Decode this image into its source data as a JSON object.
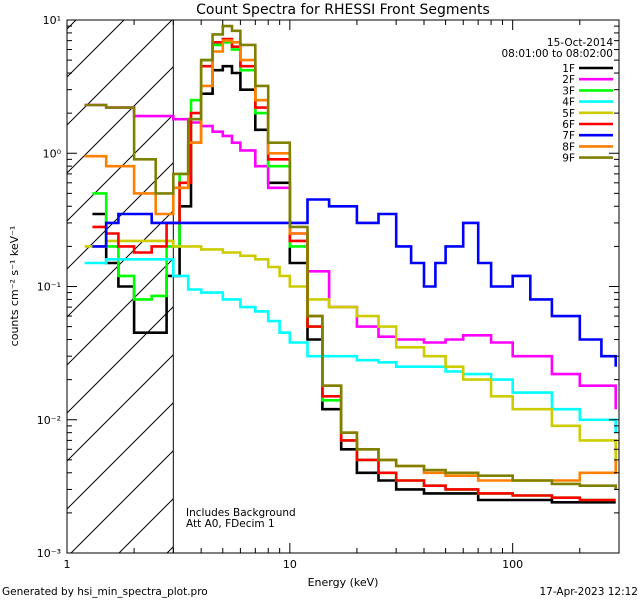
{
  "chart_data": {
    "type": "line",
    "title": "Count Spectra for RHESSI Front Segments",
    "xlabel": "Energy (keV)",
    "ylabel": "counts cm⁻² s⁻¹ keV⁻¹",
    "xscale": "log",
    "yscale": "log",
    "xlim": [
      1,
      300
    ],
    "ylim": [
      0.001,
      10
    ],
    "x_tick_labels": [
      {
        "value": 1,
        "label": "1"
      },
      {
        "value": 10,
        "label": "10"
      },
      {
        "value": 100,
        "label": "100"
      }
    ],
    "y_tick_labels": [
      {
        "value": 10,
        "label": "10¹"
      },
      {
        "value": 1,
        "label": "10⁰"
      },
      {
        "value": 0.1,
        "label": "10⁻¹"
      },
      {
        "value": 0.01,
        "label": "10⁻²"
      },
      {
        "value": 0.001,
        "label": "10⁻³"
      }
    ],
    "excluded_region_end_keV": 3,
    "legend_header": [
      "15-Oct-2014",
      "08:01:00 to 08:02:00"
    ],
    "annotations": [
      "Includes Background",
      "Att A0, FDecim 1"
    ],
    "series": [
      {
        "name": "1F",
        "color": "#000000",
        "x": [
          1.3,
          1.5,
          1.7,
          2.0,
          2.4,
          2.8,
          3.2,
          3.6,
          4.0,
          4.5,
          5.0,
          5.5,
          6.0,
          7.0,
          8.0,
          10,
          12,
          14,
          17,
          20,
          25,
          30,
          40,
          50,
          70,
          100,
          150,
          200,
          290
        ],
        "y": [
          0.35,
          0.15,
          0.1,
          0.045,
          0.045,
          0.12,
          0.4,
          1.2,
          2.8,
          4.2,
          4.5,
          4.0,
          3.0,
          1.5,
          0.6,
          0.15,
          0.04,
          0.012,
          0.006,
          0.004,
          0.0035,
          0.003,
          0.0028,
          0.0028,
          0.0025,
          0.0025,
          0.0024,
          0.0024,
          0.0024
        ]
      },
      {
        "name": "2F",
        "color": "#ff00ff",
        "x": [
          1.2,
          1.5,
          2.0,
          2.5,
          3.0,
          3.5,
          4.0,
          4.5,
          5.0,
          5.5,
          6.0,
          7.0,
          8.0,
          10,
          12,
          15,
          20,
          25,
          30,
          40,
          50,
          60,
          80,
          100,
          150,
          200,
          290
        ],
        "y": [
          2.3,
          2.2,
          1.9,
          1.9,
          1.8,
          1.7,
          1.6,
          1.45,
          1.35,
          1.2,
          1.05,
          0.8,
          0.55,
          0.25,
          0.13,
          0.07,
          0.05,
          0.042,
          0.04,
          0.038,
          0.04,
          0.043,
          0.038,
          0.03,
          0.022,
          0.018,
          0.012
        ]
      },
      {
        "name": "3F",
        "color": "#00ff00",
        "x": [
          1.3,
          1.5,
          1.7,
          2.0,
          2.4,
          2.8,
          3.2,
          3.6,
          4.0,
          4.5,
          5.0,
          5.5,
          6.0,
          7.0,
          8.0,
          10,
          12,
          14,
          17,
          20,
          25,
          30,
          40,
          50,
          70,
          100,
          150,
          200,
          290
        ],
        "y": [
          0.5,
          0.2,
          0.12,
          0.08,
          0.085,
          0.2,
          0.7,
          2.5,
          5.0,
          6.5,
          6.8,
          6.0,
          4.2,
          2.0,
          0.8,
          0.2,
          0.05,
          0.014,
          0.007,
          0.005,
          0.004,
          0.0035,
          0.0032,
          0.003,
          0.0028,
          0.0027,
          0.0026,
          0.0025,
          0.0025
        ]
      },
      {
        "name": "4F",
        "color": "#00ffff",
        "x": [
          1.2,
          1.5,
          2.0,
          2.5,
          3.0,
          3.5,
          4.0,
          5.0,
          6.0,
          7.0,
          8.0,
          9.0,
          10,
          12,
          15,
          20,
          25,
          30,
          40,
          50,
          60,
          80,
          100,
          150,
          200,
          290
        ],
        "y": [
          0.15,
          0.16,
          0.16,
          0.16,
          0.12,
          0.095,
          0.09,
          0.08,
          0.07,
          0.065,
          0.055,
          0.045,
          0.038,
          0.03,
          0.03,
          0.028,
          0.027,
          0.025,
          0.025,
          0.023,
          0.022,
          0.02,
          0.016,
          0.012,
          0.01,
          0.008
        ]
      },
      {
        "name": "5F",
        "color": "#cccc00",
        "x": [
          1.2,
          1.5,
          2.0,
          2.5,
          3.0,
          3.5,
          4.0,
          5.0,
          6.0,
          7.0,
          8.0,
          9.0,
          10,
          12,
          15,
          20,
          25,
          30,
          40,
          50,
          60,
          80,
          100,
          150,
          200,
          290
        ],
        "y": [
          0.2,
          0.22,
          0.22,
          0.22,
          0.2,
          0.2,
          0.19,
          0.18,
          0.17,
          0.16,
          0.14,
          0.12,
          0.1,
          0.08,
          0.07,
          0.06,
          0.05,
          0.035,
          0.03,
          0.025,
          0.02,
          0.015,
          0.012,
          0.009,
          0.007,
          0.005
        ]
      },
      {
        "name": "6F",
        "color": "#ff0000",
        "x": [
          1.3,
          1.5,
          1.7,
          2.0,
          2.4,
          2.8,
          3.2,
          3.6,
          4.0,
          4.5,
          5.0,
          5.5,
          6.0,
          7.0,
          8.0,
          10,
          12,
          14,
          17,
          20,
          25,
          30,
          40,
          50,
          70,
          100,
          150,
          200,
          290
        ],
        "y": [
          0.28,
          0.25,
          0.2,
          0.18,
          0.2,
          0.3,
          0.6,
          2.0,
          4.5,
          6.8,
          7.2,
          6.3,
          4.5,
          2.2,
          0.9,
          0.22,
          0.05,
          0.015,
          0.007,
          0.005,
          0.004,
          0.0035,
          0.0032,
          0.003,
          0.0028,
          0.0027,
          0.0026,
          0.0025,
          0.0025
        ]
      },
      {
        "name": "7F",
        "color": "#0000ff",
        "x": [
          1.3,
          1.5,
          1.7,
          2.0,
          2.4,
          2.8,
          12,
          15,
          20,
          25,
          30,
          35,
          40,
          45,
          50,
          60,
          70,
          80,
          100,
          120,
          150,
          200,
          250,
          290
        ],
        "y": [
          0.2,
          0.3,
          0.35,
          0.35,
          0.3,
          0.3,
          0.45,
          0.4,
          0.3,
          0.35,
          0.2,
          0.15,
          0.1,
          0.15,
          0.2,
          0.3,
          0.15,
          0.1,
          0.12,
          0.08,
          0.06,
          0.04,
          0.03,
          0.025
        ]
      },
      {
        "name": "8F",
        "color": "#ff8000",
        "x": [
          1.2,
          1.5,
          2.0,
          2.5,
          3.0,
          3.5,
          4.0,
          4.5,
          5.0,
          5.5,
          6.0,
          7.0,
          8.0,
          10,
          12,
          14,
          17,
          20,
          25,
          30,
          40,
          50,
          70,
          100,
          150,
          200,
          290
        ],
        "y": [
          0.95,
          0.8,
          0.5,
          0.35,
          0.55,
          1.2,
          3.2,
          5.8,
          7.0,
          6.8,
          5.0,
          2.5,
          1.0,
          0.25,
          0.06,
          0.018,
          0.008,
          0.006,
          0.005,
          0.0045,
          0.004,
          0.0038,
          0.0035,
          0.0035,
          0.0035,
          0.004,
          0.005
        ]
      },
      {
        "name": "9F",
        "color": "#808000",
        "x": [
          1.2,
          1.5,
          2.0,
          2.5,
          3.0,
          3.5,
          4.0,
          4.5,
          5.0,
          5.5,
          6.0,
          7.0,
          8.0,
          10,
          12,
          14,
          17,
          20,
          25,
          30,
          40,
          50,
          70,
          100,
          150,
          200,
          290
        ],
        "y": [
          2.3,
          2.2,
          0.9,
          0.5,
          0.7,
          1.8,
          5.0,
          7.8,
          9.0,
          8.3,
          6.5,
          3.2,
          1.2,
          0.28,
          0.06,
          0.018,
          0.008,
          0.006,
          0.005,
          0.0045,
          0.0042,
          0.004,
          0.0038,
          0.0035,
          0.0033,
          0.0032,
          0.003
        ]
      }
    ]
  },
  "footer": {
    "left": "Generated by hsi_min_spectra_plot.pro",
    "right": "17-Apr-2023 12:12"
  }
}
